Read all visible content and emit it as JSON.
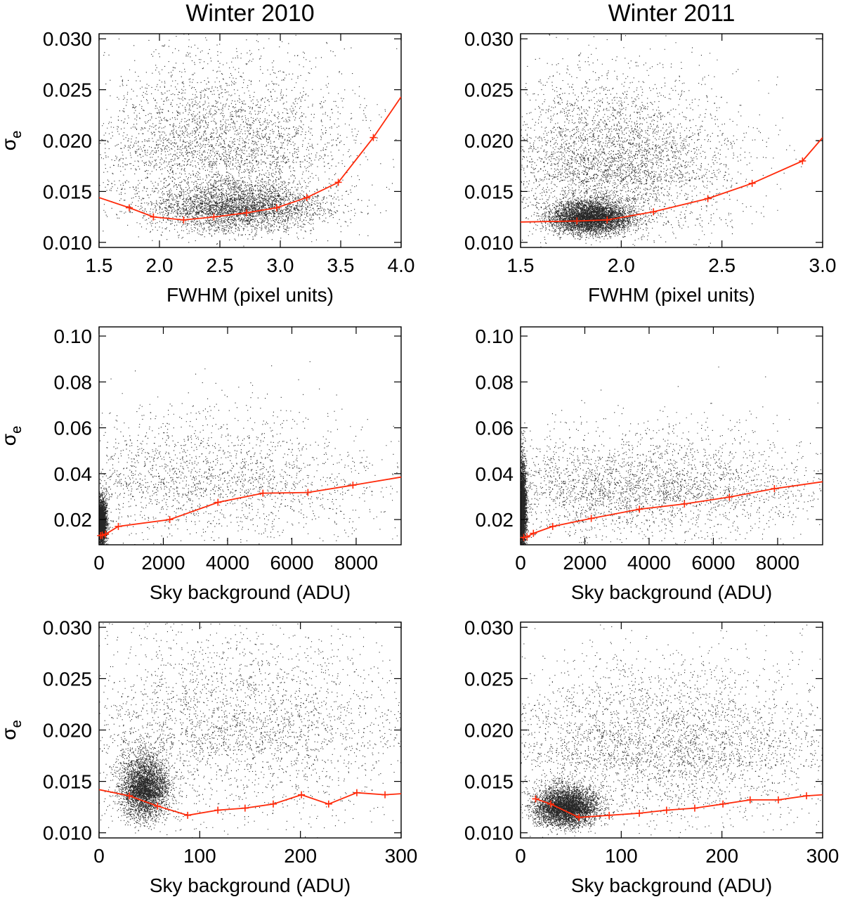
{
  "figure": {
    "column_titles": [
      "Winter 2010",
      "Winter 2011"
    ]
  },
  "chart_data": [
    {
      "id": "fwhm-2010",
      "type": "scatter",
      "column_title": "Winter 2010",
      "xlabel": "FWHM (pixel units)",
      "ylabel": "σ",
      "ylabel_sub": "e",
      "xlim": [
        1.5,
        4.0
      ],
      "ylim": [
        0.0095,
        0.0305
      ],
      "xticks": [
        1.5,
        2.0,
        2.5,
        3.0,
        3.5,
        4.0
      ],
      "xtick_labels": [
        "1.5",
        "2.0",
        "2.5",
        "3.0",
        "3.5",
        "4.0"
      ],
      "yticks": [
        0.01,
        0.015,
        0.02,
        0.025,
        0.03
      ],
      "ytick_labels": [
        "0.010",
        "0.015",
        "0.020",
        "0.025",
        "0.030"
      ],
      "scatter": {
        "color": "#000000",
        "n": 7000,
        "cores": [
          {
            "x": 2.65,
            "y": 0.0128,
            "sx": 0.35,
            "sy": 0.0016,
            "w": 0.5
          },
          {
            "x": 2.5,
            "y": 0.0175,
            "sx": 0.55,
            "sy": 0.0055,
            "w": 0.5
          }
        ]
      },
      "fit_line": {
        "color": "#ff2a0a",
        "x": [
          1.5,
          1.75,
          1.95,
          2.2,
          2.45,
          2.72,
          2.97,
          3.22,
          3.48,
          3.77,
          4.0
        ],
        "y": [
          0.0144,
          0.0134,
          0.0125,
          0.0122,
          0.0125,
          0.0129,
          0.0134,
          0.0144,
          0.0159,
          0.0203,
          0.0243
        ]
      }
    },
    {
      "id": "fwhm-2011",
      "type": "scatter",
      "column_title": "Winter 2011",
      "xlabel": "FWHM (pixel units)",
      "ylabel": "σ",
      "ylabel_sub": "e",
      "xlim": [
        1.5,
        3.0
      ],
      "ylim": [
        0.0095,
        0.0305
      ],
      "xticks": [
        1.5,
        2.0,
        2.5,
        3.0
      ],
      "xtick_labels": [
        "1.5",
        "2.0",
        "2.5",
        "3.0"
      ],
      "yticks": [
        0.01,
        0.015,
        0.02,
        0.025,
        0.03
      ],
      "ytick_labels": [
        "0.010",
        "0.015",
        "0.020",
        "0.025",
        "0.030"
      ],
      "scatter": {
        "color": "#000000",
        "n": 9000,
        "cores": [
          {
            "x": 1.85,
            "y": 0.012,
            "sx": 0.1,
            "sy": 0.001,
            "w": 0.55
          },
          {
            "x": 1.95,
            "y": 0.016,
            "sx": 0.3,
            "sy": 0.005,
            "w": 0.45
          }
        ]
      },
      "fit_line": {
        "color": "#ff2a0a",
        "x": [
          1.5,
          1.78,
          1.93,
          2.16,
          2.43,
          2.65,
          2.9,
          3.0
        ],
        "y": [
          0.012,
          0.0121,
          0.0122,
          0.013,
          0.0143,
          0.0158,
          0.018,
          0.0203
        ]
      }
    },
    {
      "id": "sky-wide-2010",
      "type": "scatter",
      "column_title": "Winter 2010",
      "xlabel": "Sky background (ADU)",
      "ylabel": "σ",
      "ylabel_sub": "e",
      "xlim": [
        0,
        9400
      ],
      "ylim": [
        0.009,
        0.104
      ],
      "xticks": [
        0,
        2000,
        4000,
        6000,
        8000
      ],
      "xtick_labels": [
        "0",
        "2000",
        "4000",
        "6000",
        "8000"
      ],
      "yticks": [
        0.02,
        0.04,
        0.06,
        0.08,
        0.1
      ],
      "ytick_labels": [
        "0.02",
        "0.04",
        "0.06",
        "0.08",
        "0.10"
      ],
      "scatter": {
        "color": "#000000",
        "n": 6000,
        "cores": [
          {
            "x": 60,
            "y": 0.016,
            "sx": 80,
            "sy": 0.006,
            "w": 0.6
          },
          {
            "x": 3000,
            "y": 0.03,
            "sx": 3000,
            "sy": 0.018,
            "w": 0.4
          }
        ]
      },
      "fit_line": {
        "color": "#ff2a0a",
        "x": [
          50,
          100,
          200,
          600,
          2200,
          3700,
          5100,
          6500,
          7900,
          9400
        ],
        "y": [
          0.013,
          0.0132,
          0.0136,
          0.017,
          0.02,
          0.0275,
          0.0315,
          0.0318,
          0.035,
          0.0385
        ]
      }
    },
    {
      "id": "sky-wide-2011",
      "type": "scatter",
      "column_title": "Winter 2011",
      "xlabel": "Sky background (ADU)",
      "ylabel": "σ",
      "ylabel_sub": "e",
      "xlim": [
        0,
        9400
      ],
      "ylim": [
        0.009,
        0.104
      ],
      "xticks": [
        0,
        2000,
        4000,
        6000,
        8000
      ],
      "xtick_labels": [
        "0",
        "2000",
        "4000",
        "6000",
        "8000"
      ],
      "yticks": [
        0.02,
        0.04,
        0.06,
        0.08,
        0.1
      ],
      "ytick_labels": [
        "0.02",
        "0.04",
        "0.06",
        "0.08",
        "0.10"
      ],
      "scatter": {
        "color": "#000000",
        "n": 8000,
        "cores": [
          {
            "x": 40,
            "y": 0.018,
            "sx": 60,
            "sy": 0.012,
            "w": 0.6
          },
          {
            "x": 3500,
            "y": 0.028,
            "sx": 3000,
            "sy": 0.015,
            "w": 0.4
          }
        ]
      },
      "fit_line": {
        "color": "#ff2a0a",
        "x": [
          40,
          100,
          200,
          400,
          1000,
          2200,
          3700,
          5100,
          6500,
          7900,
          9400
        ],
        "y": [
          0.012,
          0.0122,
          0.0125,
          0.014,
          0.017,
          0.0205,
          0.0245,
          0.0268,
          0.0298,
          0.0335,
          0.0365
        ]
      }
    },
    {
      "id": "sky-zoom-2010",
      "type": "scatter",
      "column_title": "Winter 2010",
      "xlabel": "Sky background (ADU)",
      "ylabel": "σ",
      "ylabel_sub": "e",
      "xlim": [
        0,
        300
      ],
      "ylim": [
        0.0095,
        0.0305
      ],
      "xticks": [
        0,
        100,
        200,
        300
      ],
      "xtick_labels": [
        "0",
        "100",
        "200",
        "300"
      ],
      "yticks": [
        0.01,
        0.015,
        0.02,
        0.025,
        0.03
      ],
      "ytick_labels": [
        "0.010",
        "0.015",
        "0.020",
        "0.025",
        "0.030"
      ],
      "scatter": {
        "color": "#000000",
        "n": 7000,
        "cores": [
          {
            "x": 45,
            "y": 0.0135,
            "sx": 12,
            "sy": 0.002,
            "w": 0.55
          },
          {
            "x": 140,
            "y": 0.018,
            "sx": 90,
            "sy": 0.006,
            "w": 0.45
          }
        ]
      },
      "fit_line": {
        "color": "#ff2a0a",
        "x": [
          0,
          30,
          58,
          88,
          118,
          145,
          173,
          201,
          228,
          256,
          284,
          300
        ],
        "y": [
          0.0142,
          0.0136,
          0.0126,
          0.0117,
          0.0122,
          0.0124,
          0.0128,
          0.0137,
          0.0128,
          0.0139,
          0.0137,
          0.0138
        ]
      }
    },
    {
      "id": "sky-zoom-2011",
      "type": "scatter",
      "column_title": "Winter 2011",
      "xlabel": "Sky background (ADU)",
      "ylabel": "σ",
      "ylabel_sub": "e",
      "xlim": [
        0,
        300
      ],
      "ylim": [
        0.0095,
        0.0305
      ],
      "xticks": [
        0,
        100,
        200,
        300
      ],
      "xtick_labels": [
        "0",
        "100",
        "200",
        "300"
      ],
      "yticks": [
        0.01,
        0.015,
        0.02,
        0.025,
        0.03
      ],
      "ytick_labels": [
        "0.010",
        "0.015",
        "0.020",
        "0.025",
        "0.030"
      ],
      "scatter": {
        "color": "#000000",
        "n": 8500,
        "cores": [
          {
            "x": 45,
            "y": 0.012,
            "sx": 15,
            "sy": 0.0012,
            "w": 0.55
          },
          {
            "x": 140,
            "y": 0.0165,
            "sx": 90,
            "sy": 0.005,
            "w": 0.45
          }
        ]
      },
      "fit_line": {
        "color": "#ff2a0a",
        "x": [
          15,
          30,
          58,
          88,
          118,
          145,
          173,
          201,
          228,
          256,
          284,
          300
        ],
        "y": [
          0.0133,
          0.0128,
          0.0115,
          0.0117,
          0.0119,
          0.0122,
          0.0124,
          0.0128,
          0.0132,
          0.0132,
          0.0136,
          0.0137
        ]
      }
    }
  ]
}
